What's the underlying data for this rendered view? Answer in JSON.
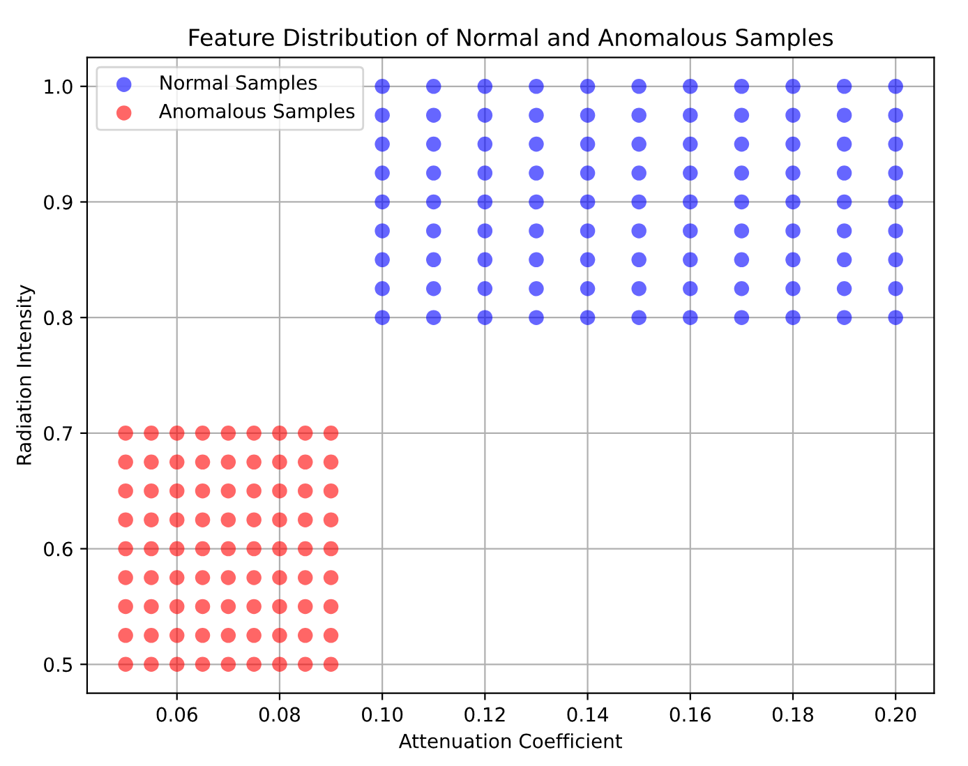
{
  "chart_data": {
    "type": "scatter",
    "title": "Feature Distribution of Normal and Anomalous Samples",
    "xlabel": "Attenuation Coefficient",
    "ylabel": "Radiation Intensity",
    "xlim": [
      0.0425,
      0.2075
    ],
    "xticks": [
      {
        "value": 0.06,
        "label": "0.06"
      },
      {
        "value": 0.08,
        "label": "0.08"
      },
      {
        "value": 0.1,
        "label": "0.10"
      },
      {
        "value": 0.12,
        "label": "0.12"
      },
      {
        "value": 0.14,
        "label": "0.14"
      },
      {
        "value": 0.16,
        "label": "0.16"
      },
      {
        "value": 0.18,
        "label": "0.18"
      },
      {
        "value": 0.2,
        "label": "0.20"
      }
    ],
    "ylim": [
      0.475,
      1.025
    ],
    "yticks": [
      0.5,
      0.6,
      0.7,
      0.8,
      0.9,
      {
        "value": 1.0,
        "label": "1.0"
      }
    ],
    "grid": true,
    "legend": "top left",
    "marker": "circle",
    "series": [
      {
        "name": "Normal Samples",
        "color": "#0000ff",
        "x": [
          0.1,
          0.11,
          0.12,
          0.13,
          0.14,
          0.15,
          0.16,
          0.17,
          0.18,
          0.19,
          0.2,
          0.1,
          0.11,
          0.12,
          0.13,
          0.14,
          0.15,
          0.16,
          0.17,
          0.18,
          0.19,
          0.2,
          0.1,
          0.11,
          0.12,
          0.13,
          0.14,
          0.15,
          0.16,
          0.17,
          0.18,
          0.19,
          0.2,
          0.1,
          0.11,
          0.12,
          0.13,
          0.14,
          0.15,
          0.16,
          0.17,
          0.18,
          0.19,
          0.2,
          0.1,
          0.11,
          0.12,
          0.13,
          0.14,
          0.15,
          0.16,
          0.17,
          0.18,
          0.19,
          0.2,
          0.1,
          0.11,
          0.12,
          0.13,
          0.14,
          0.15,
          0.16,
          0.17,
          0.18,
          0.19,
          0.2,
          0.1,
          0.11,
          0.12,
          0.13,
          0.14,
          0.15,
          0.16,
          0.17,
          0.18,
          0.19,
          0.2,
          0.1,
          0.11,
          0.12,
          0.13,
          0.14,
          0.15,
          0.16,
          0.17,
          0.18,
          0.19,
          0.2,
          0.1,
          0.11,
          0.12,
          0.13,
          0.14,
          0.15,
          0.16,
          0.17,
          0.18,
          0.19,
          0.2
        ],
        "values": [
          0.8,
          0.8,
          0.8,
          0.8,
          0.8,
          0.8,
          0.8,
          0.8,
          0.8,
          0.8,
          0.8,
          0.825,
          0.825,
          0.825,
          0.825,
          0.825,
          0.825,
          0.825,
          0.825,
          0.825,
          0.825,
          0.825,
          0.85,
          0.85,
          0.85,
          0.85,
          0.85,
          0.85,
          0.85,
          0.85,
          0.85,
          0.85,
          0.85,
          0.875,
          0.875,
          0.875,
          0.875,
          0.875,
          0.875,
          0.875,
          0.875,
          0.875,
          0.875,
          0.875,
          0.9,
          0.9,
          0.9,
          0.9,
          0.9,
          0.9,
          0.9,
          0.9,
          0.9,
          0.9,
          0.9,
          0.925,
          0.925,
          0.925,
          0.925,
          0.925,
          0.925,
          0.925,
          0.925,
          0.925,
          0.925,
          0.925,
          0.95,
          0.95,
          0.95,
          0.95,
          0.95,
          0.95,
          0.95,
          0.95,
          0.95,
          0.95,
          0.95,
          0.975,
          0.975,
          0.975,
          0.975,
          0.975,
          0.975,
          0.975,
          0.975,
          0.975,
          0.975,
          0.975,
          1.0,
          1.0,
          1.0,
          1.0,
          1.0,
          1.0,
          1.0,
          1.0,
          1.0,
          1.0,
          1.0
        ]
      },
      {
        "name": "Anomalous Samples",
        "color": "#ff0000",
        "x": [
          0.05,
          0.055,
          0.06,
          0.065,
          0.07,
          0.075,
          0.08,
          0.085,
          0.09,
          0.05,
          0.055,
          0.06,
          0.065,
          0.07,
          0.075,
          0.08,
          0.085,
          0.09,
          0.05,
          0.055,
          0.06,
          0.065,
          0.07,
          0.075,
          0.08,
          0.085,
          0.09,
          0.05,
          0.055,
          0.06,
          0.065,
          0.07,
          0.075,
          0.08,
          0.085,
          0.09,
          0.05,
          0.055,
          0.06,
          0.065,
          0.07,
          0.075,
          0.08,
          0.085,
          0.09,
          0.05,
          0.055,
          0.06,
          0.065,
          0.07,
          0.075,
          0.08,
          0.085,
          0.09,
          0.05,
          0.055,
          0.06,
          0.065,
          0.07,
          0.075,
          0.08,
          0.085,
          0.09,
          0.05,
          0.055,
          0.06,
          0.065,
          0.07,
          0.075,
          0.08,
          0.085,
          0.09,
          0.05,
          0.055,
          0.06,
          0.065,
          0.07,
          0.075,
          0.08,
          0.085,
          0.09
        ],
        "values": [
          0.5,
          0.5,
          0.5,
          0.5,
          0.5,
          0.5,
          0.5,
          0.5,
          0.5,
          0.525,
          0.525,
          0.525,
          0.525,
          0.525,
          0.525,
          0.525,
          0.525,
          0.525,
          0.55,
          0.55,
          0.55,
          0.55,
          0.55,
          0.55,
          0.55,
          0.55,
          0.55,
          0.575,
          0.575,
          0.575,
          0.575,
          0.575,
          0.575,
          0.575,
          0.575,
          0.575,
          0.6,
          0.6,
          0.6,
          0.6,
          0.6,
          0.6,
          0.6,
          0.6,
          0.6,
          0.625,
          0.625,
          0.625,
          0.625,
          0.625,
          0.625,
          0.625,
          0.625,
          0.625,
          0.65,
          0.65,
          0.65,
          0.65,
          0.65,
          0.65,
          0.65,
          0.65,
          0.65,
          0.675,
          0.675,
          0.675,
          0.675,
          0.675,
          0.675,
          0.675,
          0.675,
          0.675,
          0.7,
          0.7,
          0.7,
          0.7,
          0.7,
          0.7,
          0.7,
          0.7,
          0.7
        ]
      }
    ]
  }
}
